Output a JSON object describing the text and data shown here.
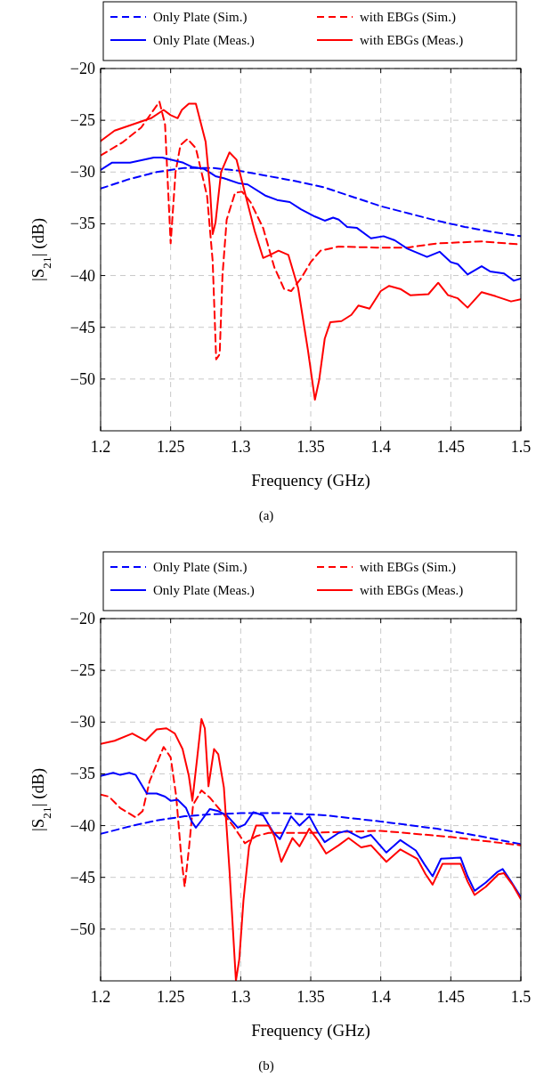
{
  "chart_data": [
    {
      "type": "line",
      "xlabel": "Frequency (GHz)",
      "ylabel": "|S$_{21}$| (dB)",
      "xlim": [
        1.2,
        1.5
      ],
      "ylim": [
        -55,
        -20
      ],
      "xticks": [
        1.2,
        1.25,
        1.3,
        1.35,
        1.4,
        1.45,
        1.5
      ],
      "yticks": [
        -50,
        -45,
        -40,
        -35,
        -30,
        -25,
        -20
      ],
      "grid": true,
      "legend": "top",
      "marker": "none",
      "annotations": [
        "(a)"
      ],
      "series": [
        {
          "name": "Only Plate (Sim.)",
          "color": "#0000ff",
          "line_style": "dashed",
          "x": [
            1.2,
            1.22,
            1.24,
            1.26,
            1.28,
            1.3,
            1.32,
            1.34,
            1.36,
            1.38,
            1.4,
            1.42,
            1.44,
            1.46,
            1.48,
            1.5
          ],
          "values": [
            -31.6,
            -30.7,
            -30.0,
            -29.6,
            -29.6,
            -29.9,
            -30.4,
            -30.9,
            -31.5,
            -32.4,
            -33.3,
            -34.0,
            -34.7,
            -35.3,
            -35.8,
            -36.2
          ]
        },
        {
          "name": "with EBGs (Sim.)",
          "color": "#ff0000",
          "line_style": "dashed",
          "x": [
            1.2,
            1.216,
            1.229,
            1.242,
            1.246,
            1.25,
            1.2535,
            1.257,
            1.262,
            1.268,
            1.276,
            1.28,
            1.2825,
            1.285,
            1.287,
            1.29,
            1.296,
            1.301,
            1.307,
            1.316,
            1.324,
            1.331,
            1.336,
            1.343,
            1.35,
            1.357,
            1.37,
            1.397,
            1.419,
            1.44,
            1.472,
            1.5
          ],
          "values": [
            -28.4,
            -27.1,
            -25.7,
            -23.2,
            -25.4,
            -36.9,
            -30.0,
            -27.4,
            -26.8,
            -27.7,
            -32.3,
            -38.6,
            -48.1,
            -47.6,
            -40.0,
            -34.6,
            -32.0,
            -31.9,
            -32.9,
            -35.4,
            -39.2,
            -41.3,
            -41.5,
            -40.3,
            -38.7,
            -37.6,
            -37.2,
            -37.3,
            -37.3,
            -36.9,
            -36.7,
            -37.0
          ]
        },
        {
          "name": "Only Plate (Meas.)",
          "color": "#0000ff",
          "line_style": "solid",
          "x": [
            1.2,
            1.208,
            1.221,
            1.238,
            1.244,
            1.259,
            1.265,
            1.274,
            1.282,
            1.288,
            1.299,
            1.305,
            1.318,
            1.326,
            1.335,
            1.343,
            1.353,
            1.36,
            1.366,
            1.37,
            1.376,
            1.383,
            1.393,
            1.402,
            1.41,
            1.419,
            1.433,
            1.442,
            1.45,
            1.455,
            1.462,
            1.472,
            1.478,
            1.488,
            1.495,
            1.5
          ],
          "values": [
            -29.8,
            -29.1,
            -29.1,
            -28.6,
            -28.6,
            -29.1,
            -29.5,
            -29.7,
            -30.4,
            -30.6,
            -31.1,
            -31.2,
            -32.3,
            -32.7,
            -32.9,
            -33.6,
            -34.3,
            -34.7,
            -34.4,
            -34.6,
            -35.3,
            -35.4,
            -36.4,
            -36.2,
            -36.6,
            -37.4,
            -38.2,
            -37.7,
            -38.7,
            -38.9,
            -39.9,
            -39.1,
            -39.6,
            -39.8,
            -40.5,
            -40.3
          ]
        },
        {
          "name": "with EBGs (Meas.)",
          "color": "#ff0000",
          "line_style": "solid",
          "x": [
            1.2,
            1.21,
            1.223,
            1.236,
            1.245,
            1.25,
            1.255,
            1.258,
            1.263,
            1.268,
            1.275,
            1.278,
            1.28,
            1.282,
            1.286,
            1.292,
            1.297,
            1.303,
            1.31,
            1.316,
            1.321,
            1.327,
            1.334,
            1.341,
            1.348,
            1.353,
            1.356,
            1.36,
            1.364,
            1.372,
            1.379,
            1.384,
            1.392,
            1.4,
            1.406,
            1.414,
            1.421,
            1.434,
            1.441,
            1.448,
            1.455,
            1.462,
            1.472,
            1.482,
            1.493,
            1.5
          ],
          "values": [
            -27.0,
            -26.0,
            -25.4,
            -24.8,
            -24.0,
            -24.5,
            -24.8,
            -24.0,
            -23.4,
            -23.4,
            -27.1,
            -31.4,
            -36.0,
            -34.9,
            -30.0,
            -28.1,
            -28.8,
            -32.0,
            -35.7,
            -38.3,
            -38.0,
            -37.6,
            -38.0,
            -41.2,
            -47.2,
            -52.0,
            -50.1,
            -46.1,
            -44.5,
            -44.4,
            -43.8,
            -42.9,
            -43.2,
            -41.5,
            -41.0,
            -41.3,
            -41.9,
            -41.8,
            -40.7,
            -41.9,
            -42.2,
            -43.1,
            -41.6,
            -42.0,
            -42.5,
            -42.3
          ]
        }
      ]
    },
    {
      "type": "line",
      "xlabel": "Frequency (GHz)",
      "ylabel": "|S$_{21}$| (dB)",
      "xlim": [
        1.2,
        1.5
      ],
      "ylim": [
        -55,
        -20
      ],
      "xticks": [
        1.2,
        1.25,
        1.3,
        1.35,
        1.4,
        1.45,
        1.5
      ],
      "yticks": [
        -50,
        -45,
        -40,
        -35,
        -30,
        -25,
        -20
      ],
      "grid": true,
      "legend": "top",
      "marker": "none",
      "annotations": [
        "(b)"
      ],
      "series": [
        {
          "name": "Only Plate (Sim.)",
          "color": "#0000ff",
          "line_style": "dashed",
          "x": [
            1.2,
            1.22,
            1.24,
            1.26,
            1.28,
            1.3,
            1.33,
            1.36,
            1.4,
            1.44,
            1.47,
            1.5
          ],
          "values": [
            -40.8,
            -40.1,
            -39.5,
            -39.1,
            -38.9,
            -38.8,
            -38.8,
            -39.0,
            -39.6,
            -40.3,
            -41.0,
            -41.8
          ]
        },
        {
          "name": "with EBGs (Sim.)",
          "color": "#ff0000",
          "line_style": "dashed",
          "x": [
            1.2,
            1.206,
            1.214,
            1.225,
            1.23,
            1.235,
            1.245,
            1.25,
            1.254,
            1.2575,
            1.26,
            1.263,
            1.266,
            1.272,
            1.278,
            1.286,
            1.2945,
            1.303,
            1.3115,
            1.32,
            1.35,
            1.4,
            1.45,
            1.5
          ],
          "values": [
            -37.0,
            -37.2,
            -38.3,
            -39.2,
            -38.6,
            -35.7,
            -32.4,
            -33.4,
            -37.2,
            -42.9,
            -45.9,
            -42.3,
            -38.0,
            -36.6,
            -37.3,
            -38.6,
            -40.0,
            -41.7,
            -41.0,
            -40.7,
            -40.7,
            -40.5,
            -41.1,
            -41.9
          ]
        },
        {
          "name": "Only Plate (Meas.)",
          "color": "#0000ff",
          "line_style": "solid",
          "x": [
            1.2,
            1.209,
            1.214,
            1.2205,
            1.225,
            1.233,
            1.24,
            1.246,
            1.25,
            1.255,
            1.261,
            1.265,
            1.268,
            1.272,
            1.278,
            1.284,
            1.29,
            1.298,
            1.303,
            1.309,
            1.316,
            1.323,
            1.328,
            1.336,
            1.342,
            1.349,
            1.355,
            1.36,
            1.37,
            1.376,
            1.386,
            1.393,
            1.404,
            1.414,
            1.425,
            1.431,
            1.437,
            1.443,
            1.457,
            1.462,
            1.467,
            1.475,
            1.483,
            1.487,
            1.493,
            1.5
          ],
          "values": [
            -35.2,
            -34.9,
            -35.1,
            -34.9,
            -35.1,
            -36.9,
            -36.9,
            -37.2,
            -37.6,
            -37.5,
            -38.3,
            -39.6,
            -40.2,
            -39.5,
            -38.4,
            -38.6,
            -39.0,
            -40.2,
            -39.9,
            -38.7,
            -39.0,
            -40.6,
            -41.3,
            -39.1,
            -40.0,
            -39.1,
            -40.6,
            -41.6,
            -40.7,
            -40.5,
            -41.2,
            -40.9,
            -42.6,
            -41.4,
            -42.4,
            -43.7,
            -44.9,
            -43.2,
            -43.1,
            -44.9,
            -46.3,
            -45.5,
            -44.5,
            -44.2,
            -45.4,
            -46.9
          ]
        },
        {
          "name": "with EBGs (Meas.)",
          "color": "#ff0000",
          "line_style": "solid",
          "x": [
            1.2,
            1.21,
            1.2226,
            1.232,
            1.24,
            1.247,
            1.253,
            1.2585,
            1.263,
            1.2655,
            1.269,
            1.272,
            1.2744,
            1.277,
            1.281,
            1.284,
            1.288,
            1.292,
            1.2966,
            1.299,
            1.302,
            1.306,
            1.311,
            1.32,
            1.324,
            1.329,
            1.337,
            1.342,
            1.349,
            1.355,
            1.361,
            1.37,
            1.377,
            1.386,
            1.393,
            1.404,
            1.414,
            1.426,
            1.432,
            1.437,
            1.444,
            1.457,
            1.462,
            1.467,
            1.475,
            1.484,
            1.488,
            1.494,
            1.5
          ],
          "values": [
            -32.1,
            -31.8,
            -31.1,
            -31.8,
            -30.7,
            -30.6,
            -31.1,
            -32.6,
            -35.2,
            -37.6,
            -33.4,
            -29.7,
            -30.6,
            -36.2,
            -32.6,
            -33.1,
            -36.3,
            -44.3,
            -55.0,
            -52.9,
            -47.2,
            -42.0,
            -40.0,
            -40.0,
            -41.0,
            -43.5,
            -41.2,
            -42.0,
            -40.3,
            -41.4,
            -42.7,
            -41.9,
            -41.2,
            -42.1,
            -41.9,
            -43.5,
            -42.3,
            -43.2,
            -44.7,
            -45.7,
            -43.7,
            -43.7,
            -45.4,
            -46.7,
            -45.9,
            -44.7,
            -44.6,
            -45.7,
            -47.1
          ]
        }
      ]
    }
  ]
}
